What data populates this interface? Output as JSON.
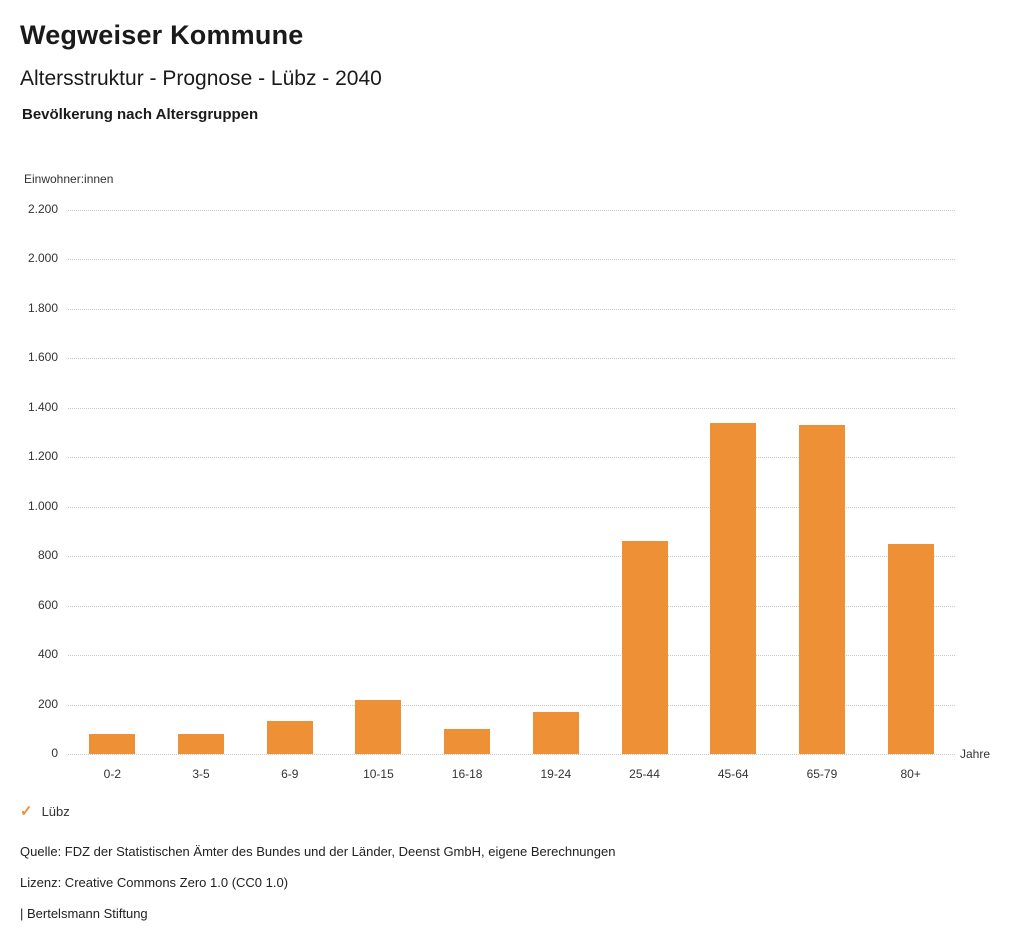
{
  "header": {
    "title": "Wegweiser Kommune",
    "subtitle": "Altersstruktur - Prognose - Lübz - 2040",
    "caption": "Bevölkerung nach Altersgruppen"
  },
  "legend": {
    "check_icon": "✓",
    "label": "Lübz"
  },
  "footer": {
    "source": "Quelle: FDZ der Statistischen Ämter des Bundes und der Länder, Deenst GmbH, eigene Berechnungen",
    "license": "Lizenz: Creative Commons Zero 1.0 (CC0 1.0)",
    "brand": "| Bertelsmann Stiftung"
  },
  "colors": {
    "bar": "#ED9036",
    "grid": "#c9c9c9",
    "text": "#1a1a1a"
  },
  "chart_data": {
    "type": "bar",
    "title": "Bevölkerung nach Altersgruppen",
    "categories": [
      "0-2",
      "3-5",
      "6-9",
      "10-15",
      "16-18",
      "19-24",
      "25-44",
      "45-64",
      "65-79",
      "80+"
    ],
    "series": [
      {
        "name": "Lübz",
        "color": "#ED9036",
        "values": [
          80,
          80,
          135,
          220,
          100,
          170,
          860,
          1340,
          1330,
          850
        ]
      }
    ],
    "xlabel": "Jahre",
    "ylabel": "Einwohner:innen",
    "ylim": [
      0,
      2200
    ],
    "grid": "horizontal-dotted",
    "legend_position": "bottom-left",
    "yticks": [
      {
        "value": 0,
        "label": "0"
      },
      {
        "value": 200,
        "label": "200"
      },
      {
        "value": 400,
        "label": "400"
      },
      {
        "value": 600,
        "label": "600"
      },
      {
        "value": 800,
        "label": "800"
      },
      {
        "value": 1000,
        "label": "1.000"
      },
      {
        "value": 1200,
        "label": "1.200"
      },
      {
        "value": 1400,
        "label": "1.400"
      },
      {
        "value": 1600,
        "label": "1.600"
      },
      {
        "value": 1800,
        "label": "1.800"
      },
      {
        "value": 2000,
        "label": "2.000"
      },
      {
        "value": 2200,
        "label": "2.200"
      }
    ]
  }
}
